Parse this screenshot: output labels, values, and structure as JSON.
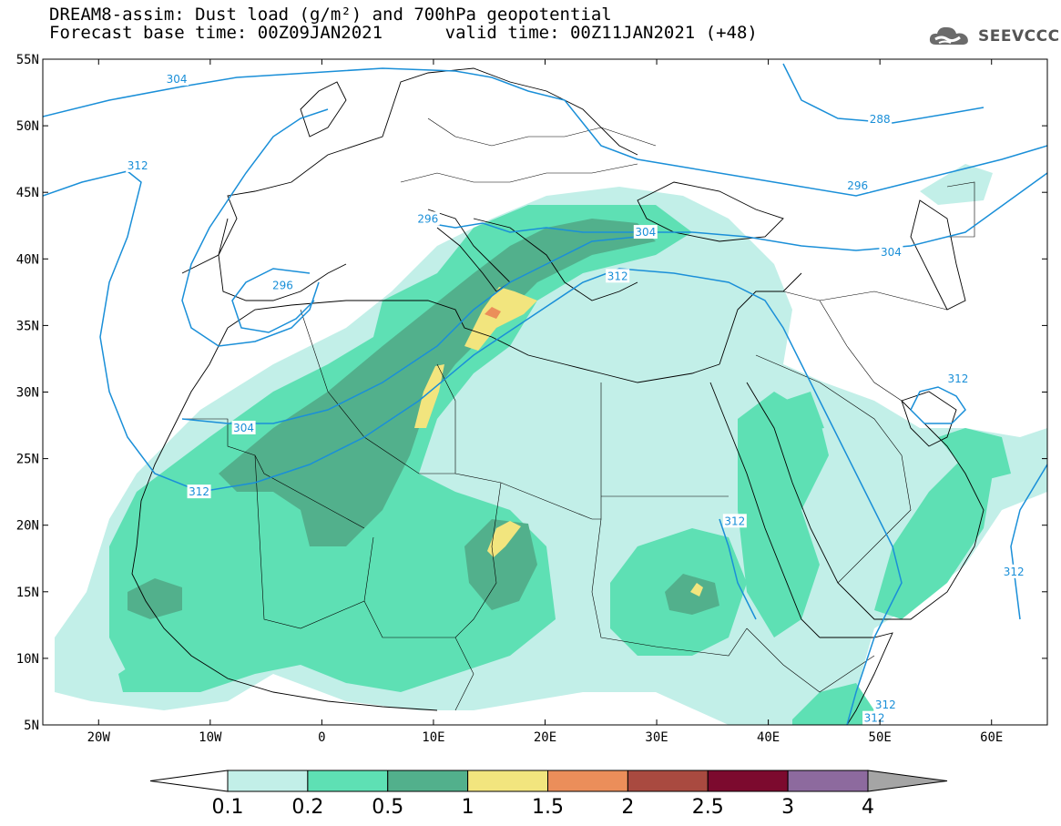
{
  "header": {
    "title_line1": "DREAM8-assim: Dust load (g/m²) and 700hPa geopotential",
    "title_line2": "Forecast base time: 00Z09JAN2021      valid time: 00Z11JAN2021 (+48)"
  },
  "logo": {
    "text": "SEEVCCC",
    "icon": "cloud-icon"
  },
  "map": {
    "lon_range": [
      -25,
      65
    ],
    "lat_range": [
      5,
      55
    ],
    "lat_ticks": [
      {
        "lat": 55,
        "label": "55N"
      },
      {
        "lat": 50,
        "label": "50N"
      },
      {
        "lat": 45,
        "label": "45N"
      },
      {
        "lat": 40,
        "label": "40N"
      },
      {
        "lat": 35,
        "label": "35N"
      },
      {
        "lat": 30,
        "label": "30N"
      },
      {
        "lat": 25,
        "label": "25N"
      },
      {
        "lat": 20,
        "label": "20N"
      },
      {
        "lat": 15,
        "label": "15N"
      },
      {
        "lat": 10,
        "label": "10N"
      },
      {
        "lat": 5,
        "label": "5N"
      }
    ],
    "lon_ticks": [
      {
        "lon": -20,
        "label": "20W"
      },
      {
        "lon": -10,
        "label": "10W"
      },
      {
        "lon": 0,
        "label": "0"
      },
      {
        "lon": 10,
        "label": "10E"
      },
      {
        "lon": 20,
        "label": "20E"
      },
      {
        "lon": 30,
        "label": "30E"
      },
      {
        "lon": 40,
        "label": "40E"
      },
      {
        "lon": 50,
        "label": "50E"
      },
      {
        "lon": 60,
        "label": "60E"
      }
    ],
    "contour_labels": [
      {
        "text": "304",
        "lon": -13,
        "lat": 53.5
      },
      {
        "text": "288",
        "lon": 50,
        "lat": 50.5
      },
      {
        "text": "312",
        "lon": -16.5,
        "lat": 47
      },
      {
        "text": "296",
        "lon": 48,
        "lat": 45.5
      },
      {
        "text": "296",
        "lon": 9.5,
        "lat": 43
      },
      {
        "text": "304",
        "lon": 29,
        "lat": 42
      },
      {
        "text": "304",
        "lon": 51,
        "lat": 40.5
      },
      {
        "text": "296",
        "lon": -3.5,
        "lat": 38
      },
      {
        "text": "312",
        "lon": 26.5,
        "lat": 38.7
      },
      {
        "text": "312",
        "lon": 57,
        "lat": 31
      },
      {
        "text": "304",
        "lon": -7,
        "lat": 27.3
      },
      {
        "text": "312",
        "lon": -11,
        "lat": 22.5
      },
      {
        "text": "312",
        "lon": 37,
        "lat": 20.3
      },
      {
        "text": "312",
        "lon": 62,
        "lat": 16.5
      },
      {
        "text": "312",
        "lon": 50.5,
        "lat": 6.5
      },
      {
        "text": "312",
        "lon": 49.5,
        "lat": 5.5
      }
    ]
  },
  "colorbar": {
    "colors": [
      "#c2efe8",
      "#5ee0b4",
      "#52b08c",
      "#f2e57e",
      "#eb8e5a",
      "#a94a40",
      "#7c0a2e",
      "#8d6a9e"
    ],
    "labels": [
      "0.1",
      "0.2",
      "0.5",
      "1",
      "1.5",
      "2",
      "2.5",
      "3",
      "4"
    ],
    "under_color": "#ffffff",
    "over_color": "#a5a5a5"
  },
  "colors": {
    "contour": "#1a8fd8",
    "border": "#000000"
  }
}
